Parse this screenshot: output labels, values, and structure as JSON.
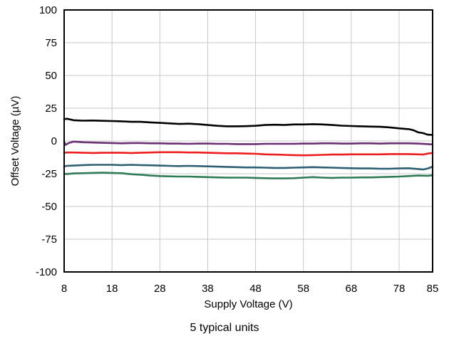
{
  "chart_data": {
    "type": "line",
    "xlabel": "Supply Voltage (V)",
    "ylabel": "Offset Voltage (µV)",
    "xlim": [
      8,
      85
    ],
    "ylim": [
      -100,
      100
    ],
    "x_ticks": [
      8,
      18,
      28,
      38,
      48,
      58,
      68,
      78,
      85
    ],
    "y_ticks": [
      100,
      75,
      50,
      25,
      0,
      -25,
      -50,
      -75,
      -100
    ],
    "grid": true,
    "caption": "5 typical units",
    "series": [
      {
        "color": "#000000",
        "points": [
          [
            8,
            16.5
          ],
          [
            8.5,
            17
          ],
          [
            10,
            15.8
          ],
          [
            12,
            15.5
          ],
          [
            14,
            15.6
          ],
          [
            16,
            15.4
          ],
          [
            18,
            15.2
          ],
          [
            20,
            15
          ],
          [
            22,
            14.6
          ],
          [
            24,
            14.6
          ],
          [
            26,
            14.2
          ],
          [
            28,
            13.8
          ],
          [
            30,
            13.4
          ],
          [
            32,
            13
          ],
          [
            34,
            13.2
          ],
          [
            36,
            12.8
          ],
          [
            38,
            12.2
          ],
          [
            40,
            11.6
          ],
          [
            42,
            11.2
          ],
          [
            44,
            11.2
          ],
          [
            46,
            11.3
          ],
          [
            48,
            11.6
          ],
          [
            50,
            12.2
          ],
          [
            52,
            12.4
          ],
          [
            54,
            12.2
          ],
          [
            56,
            12.6
          ],
          [
            58,
            12.6
          ],
          [
            60,
            12.8
          ],
          [
            62,
            12.6
          ],
          [
            64,
            12.2
          ],
          [
            66,
            11.7
          ],
          [
            68,
            11.4
          ],
          [
            70,
            11.2
          ],
          [
            72,
            11
          ],
          [
            74,
            10.8
          ],
          [
            76,
            10.4
          ],
          [
            78,
            9.6
          ],
          [
            80,
            9
          ],
          [
            81,
            8.2
          ],
          [
            82,
            6.6
          ],
          [
            83,
            6
          ],
          [
            84,
            4.8
          ],
          [
            85,
            4.6
          ]
        ]
      },
      {
        "color": "#6b2f73",
        "points": [
          [
            8,
            -0.5
          ],
          [
            8.3,
            -3
          ],
          [
            9,
            -1.5
          ],
          [
            10,
            -0.5
          ],
          [
            12,
            -1
          ],
          [
            14,
            -1.2
          ],
          [
            16,
            -1.4
          ],
          [
            18,
            -1.6
          ],
          [
            20,
            -1.8
          ],
          [
            22,
            -1.6
          ],
          [
            24,
            -1.6
          ],
          [
            26,
            -1.8
          ],
          [
            28,
            -1.8
          ],
          [
            30,
            -2
          ],
          [
            32,
            -2
          ],
          [
            34,
            -2.2
          ],
          [
            36,
            -2
          ],
          [
            38,
            -2
          ],
          [
            40,
            -2.2
          ],
          [
            42,
            -2.2
          ],
          [
            44,
            -2.4
          ],
          [
            46,
            -2.4
          ],
          [
            48,
            -2.4
          ],
          [
            50,
            -2.2
          ],
          [
            52,
            -2.2
          ],
          [
            54,
            -2.2
          ],
          [
            56,
            -2.2
          ],
          [
            58,
            -2
          ],
          [
            60,
            -2
          ],
          [
            62,
            -1.8
          ],
          [
            64,
            -1.8
          ],
          [
            66,
            -2
          ],
          [
            68,
            -2
          ],
          [
            70,
            -1.8
          ],
          [
            72,
            -1.8
          ],
          [
            74,
            -2
          ],
          [
            76,
            -1.8
          ],
          [
            78,
            -1.8
          ],
          [
            80,
            -1.8
          ],
          [
            82,
            -2
          ],
          [
            84,
            -2.4
          ],
          [
            85,
            -2.6
          ]
        ]
      },
      {
        "color": "#ee1c1c",
        "points": [
          [
            8,
            -9
          ],
          [
            8.5,
            -8.8
          ],
          [
            10,
            -8.8
          ],
          [
            12,
            -9
          ],
          [
            14,
            -9.2
          ],
          [
            16,
            -9
          ],
          [
            18,
            -9
          ],
          [
            20,
            -9
          ],
          [
            22,
            -9.2
          ],
          [
            24,
            -9
          ],
          [
            26,
            -8.8
          ],
          [
            28,
            -8.6
          ],
          [
            30,
            -8.6
          ],
          [
            32,
            -8.6
          ],
          [
            34,
            -8.8
          ],
          [
            36,
            -8.8
          ],
          [
            38,
            -9
          ],
          [
            40,
            -9.2
          ],
          [
            42,
            -9.4
          ],
          [
            44,
            -9.4
          ],
          [
            46,
            -9.6
          ],
          [
            48,
            -9.8
          ],
          [
            50,
            -10.2
          ],
          [
            52,
            -10.4
          ],
          [
            54,
            -10.6
          ],
          [
            56,
            -10.8
          ],
          [
            58,
            -11
          ],
          [
            60,
            -10.8
          ],
          [
            62,
            -10.6
          ],
          [
            64,
            -10.4
          ],
          [
            66,
            -10.4
          ],
          [
            68,
            -10.2
          ],
          [
            70,
            -10.2
          ],
          [
            72,
            -10.2
          ],
          [
            74,
            -10.2
          ],
          [
            76,
            -10
          ],
          [
            78,
            -10
          ],
          [
            80,
            -10
          ],
          [
            82,
            -10.2
          ],
          [
            83,
            -10.4
          ],
          [
            84,
            -9.6
          ],
          [
            85,
            -9.2
          ]
        ]
      },
      {
        "color": "#2f5f73",
        "points": [
          [
            8,
            -19.5
          ],
          [
            8.5,
            -19
          ],
          [
            10,
            -18.8
          ],
          [
            12,
            -18.4
          ],
          [
            14,
            -18.2
          ],
          [
            16,
            -18.2
          ],
          [
            18,
            -18.2
          ],
          [
            20,
            -18.4
          ],
          [
            22,
            -18.2
          ],
          [
            24,
            -18.4
          ],
          [
            26,
            -18.6
          ],
          [
            28,
            -18.8
          ],
          [
            30,
            -19
          ],
          [
            32,
            -19.2
          ],
          [
            34,
            -19
          ],
          [
            36,
            -19.2
          ],
          [
            38,
            -19.4
          ],
          [
            40,
            -19.6
          ],
          [
            42,
            -19.8
          ],
          [
            44,
            -20
          ],
          [
            46,
            -20.2
          ],
          [
            48,
            -20.2
          ],
          [
            50,
            -20.4
          ],
          [
            52,
            -20.6
          ],
          [
            54,
            -20.6
          ],
          [
            56,
            -20.4
          ],
          [
            58,
            -20.2
          ],
          [
            60,
            -20
          ],
          [
            62,
            -20.2
          ],
          [
            64,
            -20.4
          ],
          [
            66,
            -20.6
          ],
          [
            68,
            -20.8
          ],
          [
            70,
            -21
          ],
          [
            72,
            -21
          ],
          [
            74,
            -21.2
          ],
          [
            76,
            -21.2
          ],
          [
            78,
            -21
          ],
          [
            80,
            -20.8
          ],
          [
            82,
            -21.4
          ],
          [
            83,
            -21.8
          ],
          [
            84,
            -21
          ],
          [
            85,
            -19.6
          ]
        ]
      },
      {
        "color": "#2e7b55",
        "points": [
          [
            8,
            -25
          ],
          [
            8.5,
            -25.2
          ],
          [
            10,
            -24.8
          ],
          [
            12,
            -24.6
          ],
          [
            14,
            -24.4
          ],
          [
            16,
            -24.2
          ],
          [
            18,
            -24.4
          ],
          [
            20,
            -24.6
          ],
          [
            22,
            -25.4
          ],
          [
            24,
            -25.8
          ],
          [
            26,
            -26.4
          ],
          [
            28,
            -26.8
          ],
          [
            30,
            -27
          ],
          [
            32,
            -27.2
          ],
          [
            34,
            -27.2
          ],
          [
            36,
            -27.4
          ],
          [
            38,
            -27.6
          ],
          [
            40,
            -27.8
          ],
          [
            42,
            -28
          ],
          [
            44,
            -28
          ],
          [
            46,
            -28
          ],
          [
            48,
            -28.2
          ],
          [
            50,
            -28.4
          ],
          [
            52,
            -28.6
          ],
          [
            54,
            -28.6
          ],
          [
            56,
            -28.4
          ],
          [
            58,
            -28
          ],
          [
            60,
            -27.6
          ],
          [
            62,
            -28
          ],
          [
            64,
            -28.2
          ],
          [
            66,
            -28
          ],
          [
            68,
            -28
          ],
          [
            70,
            -27.8
          ],
          [
            72,
            -27.8
          ],
          [
            74,
            -27.6
          ],
          [
            76,
            -27.4
          ],
          [
            78,
            -27.2
          ],
          [
            80,
            -26.8
          ],
          [
            82,
            -26.4
          ],
          [
            84,
            -26.6
          ],
          [
            85,
            -26.2
          ]
        ]
      }
    ]
  }
}
